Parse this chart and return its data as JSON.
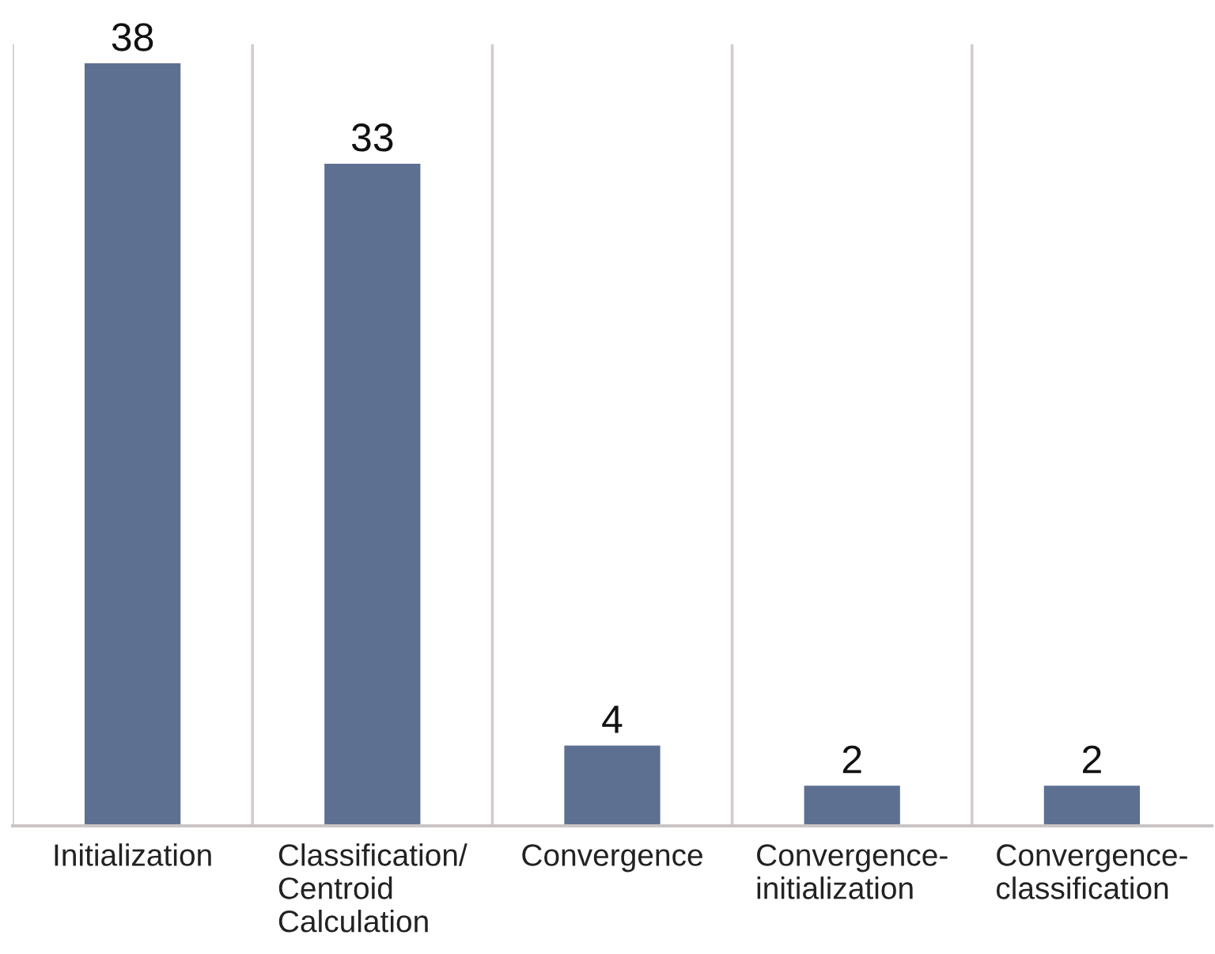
{
  "chart_data": {
    "type": "bar",
    "categories": [
      "Initialization",
      "Classification/\nCentroid\nCalculation",
      "Convergence",
      "Convergence-\ninitialization",
      "Convergence-\nclassification"
    ],
    "values": [
      38,
      33,
      4,
      2,
      2
    ],
    "color": "#5e7091",
    "data_labels": true,
    "grid": "x",
    "tick_labels": "x"
  }
}
